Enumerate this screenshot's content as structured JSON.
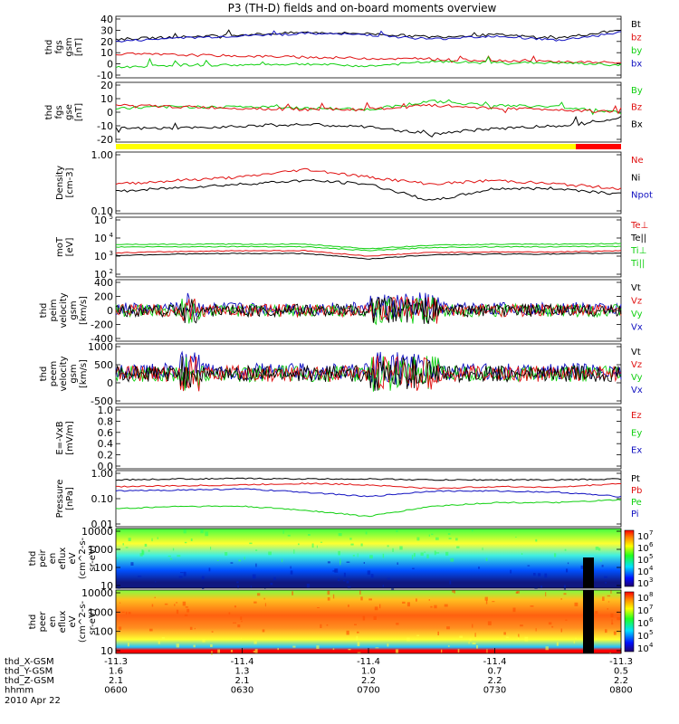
{
  "title": "P3 (TH-D) fields and on-board moments overview",
  "colors": {
    "black": "#000000",
    "red": "#e01010",
    "green": "#10d010",
    "blue": "#1010c0",
    "yellow": "#ffff00",
    "bar_red": "#ff0000"
  },
  "panels": [
    {
      "id": "fgs_gsm",
      "ylabel": [
        "thd",
        "fgs",
        "gsm",
        "[nT]"
      ],
      "scale": "linear",
      "ticks": [
        "40",
        "30",
        "20",
        "10",
        "0",
        "-10"
      ],
      "legend": [
        {
          "label": "Bt",
          "color": "black"
        },
        {
          "label": "bz",
          "color": "red"
        },
        {
          "label": "by",
          "color": "green"
        },
        {
          "label": "bx",
          "color": "blue"
        }
      ]
    },
    {
      "id": "fgs_gse",
      "ylabel": [
        "thd",
        "fgs",
        "gse",
        "[nT]"
      ],
      "scale": "linear",
      "ticks": [
        "20",
        "10",
        "0",
        "-10",
        "-20"
      ],
      "legend": [
        {
          "label": "By",
          "color": "green"
        },
        {
          "label": "Bz",
          "color": "red"
        },
        {
          "label": "Bx",
          "color": "black"
        }
      ]
    },
    {
      "id": "density",
      "ylabel": [
        "Density",
        "[cm-3]"
      ],
      "scale": "log",
      "ticks": [
        "1.00",
        "0.10"
      ],
      "legend": [
        {
          "label": "Ne",
          "color": "red"
        },
        {
          "label": "Ni",
          "color": "black"
        },
        {
          "label": "Npot",
          "color": "blue"
        }
      ]
    },
    {
      "id": "temp",
      "ylabel": [
        "moT",
        "[eV]"
      ],
      "scale": "log",
      "ticks": [
        "10",
        "10",
        "10",
        "10"
      ],
      "tick_exp": [
        "5",
        "4",
        "3",
        "2"
      ],
      "legend": [
        {
          "label": "Te⊥",
          "color": "red"
        },
        {
          "label": "Te||",
          "color": "black"
        },
        {
          "label": "Ti⊥",
          "color": "green"
        },
        {
          "label": "Ti||",
          "color": "green"
        }
      ]
    },
    {
      "id": "peim_vel",
      "ylabel": [
        "thd",
        "peim",
        "velocity",
        "gsm",
        "[km/s]"
      ],
      "scale": "linear",
      "ticks": [
        "400",
        "200",
        "0",
        "-200",
        "-400"
      ],
      "legend": [
        {
          "label": "Vt",
          "color": "black"
        },
        {
          "label": "Vz",
          "color": "red"
        },
        {
          "label": "Vy",
          "color": "green"
        },
        {
          "label": "Vx",
          "color": "blue"
        }
      ]
    },
    {
      "id": "peem_vel",
      "ylabel": [
        "thd",
        "peem",
        "velocity",
        "gsm",
        "[km/s]"
      ],
      "scale": "linear",
      "ticks": [
        "1000",
        "500",
        "0",
        "-500"
      ],
      "legend": [
        {
          "label": "Vt",
          "color": "black"
        },
        {
          "label": "Vz",
          "color": "red"
        },
        {
          "label": "Vy",
          "color": "green"
        },
        {
          "label": "Vx",
          "color": "blue"
        }
      ]
    },
    {
      "id": "efield",
      "ylabel": [
        "E=-VxB",
        "[mV/m]"
      ],
      "scale": "linear",
      "ticks": [
        "1.0",
        "0.8",
        "0.6",
        "0.4",
        "0.2",
        "0.0"
      ],
      "legend": [
        {
          "label": "Ez",
          "color": "red"
        },
        {
          "label": "Ey",
          "color": "green"
        },
        {
          "label": "Ex",
          "color": "blue"
        }
      ]
    },
    {
      "id": "pressure",
      "ylabel": [
        "Pressure",
        "[nPa]"
      ],
      "scale": "log",
      "ticks": [
        "1.00",
        "0.10",
        "0.01"
      ],
      "legend": [
        {
          "label": "Pt",
          "color": "black"
        },
        {
          "label": "Pb",
          "color": "red"
        },
        {
          "label": "Pe",
          "color": "green"
        },
        {
          "label": "Pi",
          "color": "blue"
        }
      ]
    },
    {
      "id": "peir_spec",
      "ylabel": [
        "thd",
        "peir",
        "en",
        "eflux",
        "eV",
        "(cm^2-s-",
        "sr-eV)"
      ],
      "scale": "log",
      "ticks": [
        "10000",
        "1000",
        "100",
        "10"
      ],
      "colorbar": [
        "10",
        "10",
        "10",
        "10",
        "10"
      ],
      "colorbar_exp": [
        "7",
        "6",
        "5",
        "4",
        "3"
      ]
    },
    {
      "id": "peer_spec",
      "ylabel": [
        "thd",
        "peer",
        "en",
        "eflux",
        "eV",
        "(cm^2-s-",
        "sr-eV)"
      ],
      "scale": "log",
      "ticks": [
        "10000",
        "1000",
        "100",
        "10"
      ],
      "colorbar": [
        "10",
        "10",
        "10",
        "10",
        "10"
      ],
      "colorbar_exp": [
        "8",
        "7",
        "6",
        "5",
        "4"
      ]
    }
  ],
  "x_axis_rows": [
    {
      "label": "thd_X-GSM",
      "values": [
        "-11.3",
        "-11.4",
        "-11.4",
        "-11.4",
        "-11.3"
      ]
    },
    {
      "label": "thd_Y-GSM",
      "values": [
        "1.6",
        "1.3",
        "1.0",
        "0.7",
        "0.5"
      ]
    },
    {
      "label": "thd_Z-GSM",
      "values": [
        "2.1",
        "2.1",
        "2.2",
        "2.2",
        "2.2"
      ]
    },
    {
      "label": "hhmm",
      "values": [
        "0600",
        "0630",
        "0700",
        "0730",
        "0800"
      ]
    }
  ],
  "date_label": "2010 Apr 22",
  "chart_data": {
    "type": "line",
    "title": "P3 (TH-D) fields and on-board moments overview",
    "time_range": [
      "06:00",
      "08:00"
    ],
    "x": [
      "0600",
      "0615",
      "0630",
      "0645",
      "0700",
      "0715",
      "0730",
      "0745",
      "0800"
    ],
    "series": [
      {
        "name": "Bt",
        "panel": "fgs_gsm",
        "values": [
          22,
          24,
          26,
          28,
          27,
          24,
          26,
          23,
          30
        ]
      },
      {
        "name": "bz",
        "panel": "fgs_gsm",
        "values": [
          9,
          8,
          7,
          6,
          5,
          4,
          3,
          2,
          1
        ]
      },
      {
        "name": "by",
        "panel": "fgs_gsm",
        "values": [
          -3,
          -1,
          -1,
          0,
          -2,
          2,
          1,
          1,
          -1
        ]
      },
      {
        "name": "bx",
        "panel": "fgs_gsm",
        "values": [
          20,
          23,
          25,
          27,
          26,
          22,
          25,
          21,
          28
        ]
      },
      {
        "name": "By",
        "panel": "fgs_gse",
        "values": [
          3,
          4,
          4,
          3,
          2,
          8,
          5,
          4,
          0
        ]
      },
      {
        "name": "Bz",
        "panel": "fgs_gse",
        "values": [
          5,
          4,
          3,
          2,
          2,
          5,
          3,
          2,
          0
        ]
      },
      {
        "name": "Bx",
        "panel": "fgs_gse",
        "values": [
          -12,
          -12,
          -10,
          -9,
          -11,
          -16,
          -12,
          -10,
          -4
        ]
      },
      {
        "name": "Ne",
        "panel": "density",
        "values": [
          0.3,
          0.35,
          0.4,
          0.55,
          0.4,
          0.3,
          0.35,
          0.3,
          0.25
        ]
      },
      {
        "name": "Ni",
        "panel": "density",
        "values": [
          0.22,
          0.26,
          0.3,
          0.35,
          0.3,
          0.15,
          0.25,
          0.25,
          0.2
        ]
      },
      {
        "name": "Te⊥",
        "panel": "temp",
        "values": [
          1500,
          1800,
          2000,
          2000,
          1000,
          1600,
          1700,
          1700,
          2000
        ]
      },
      {
        "name": "Te||",
        "panel": "temp",
        "values": [
          1100,
          1300,
          1400,
          1400,
          700,
          1200,
          1300,
          1300,
          1500
        ]
      },
      {
        "name": "Ti⊥",
        "panel": "temp",
        "values": [
          4500,
          4500,
          4600,
          4500,
          2600,
          4000,
          4500,
          4500,
          5000
        ]
      },
      {
        "name": "Ti||",
        "panel": "temp",
        "values": [
          3200,
          3300,
          3400,
          3300,
          2000,
          3000,
          3300,
          3300,
          3500
        ]
      },
      {
        "name": "Pt",
        "panel": "pressure",
        "values": [
          0.55,
          0.6,
          0.62,
          0.6,
          0.6,
          0.55,
          0.55,
          0.55,
          0.6
        ]
      },
      {
        "name": "Pb",
        "panel": "pressure",
        "values": [
          0.3,
          0.32,
          0.35,
          0.4,
          0.35,
          0.25,
          0.3,
          0.28,
          0.4
        ]
      },
      {
        "name": "Pe",
        "panel": "pressure",
        "values": [
          0.04,
          0.05,
          0.05,
          0.035,
          0.02,
          0.05,
          0.07,
          0.07,
          0.09
        ]
      },
      {
        "name": "Pi",
        "panel": "pressure",
        "values": [
          0.2,
          0.22,
          0.24,
          0.18,
          0.12,
          0.2,
          0.2,
          0.18,
          0.12
        ]
      }
    ]
  }
}
